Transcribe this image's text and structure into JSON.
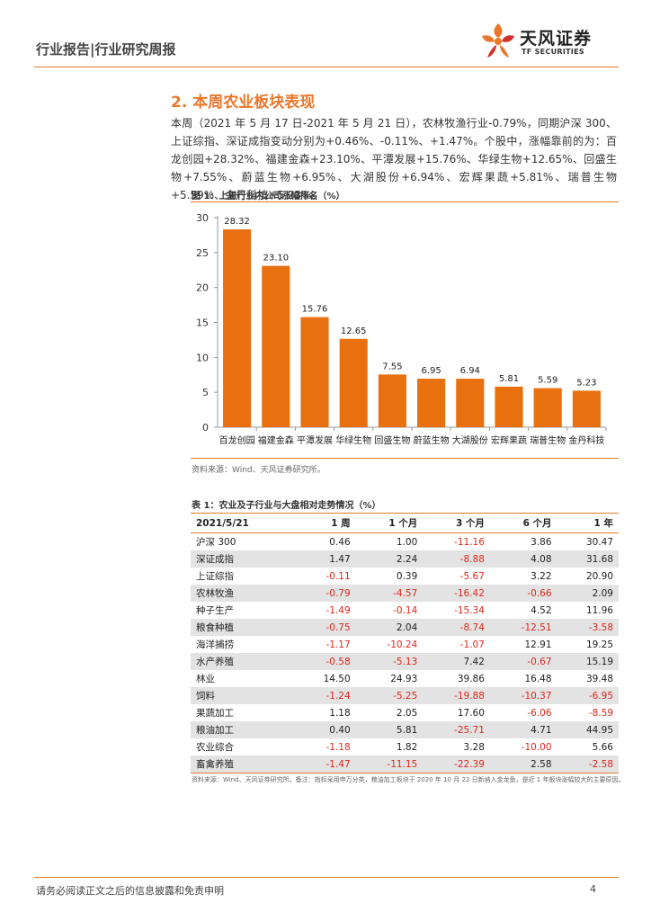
{
  "header": {
    "report_type": "行业报告|行业研究周报",
    "logo_cn": "天风证券",
    "logo_en": "TF SECURITIES",
    "brand_color": "#e8772c"
  },
  "section": {
    "title": "2. 本周农业板块表现",
    "paragraph": "本周（2021 年 5 月 17 日-2021 年 5 月 21 日），农林牧渔行业-0.79%，同期沪深 300、上证综指、深证成指变动分别为+0.46%、-0.11%、+1.47%。个股中，涨幅靠前的为：百龙创园+28.32%、福建金森+23.10%、平潭发展+15.76%、华绿生物+12.65%、回盛生物+7.55%、蔚蓝生物+6.95%、大湖股份+6.94%、宏辉果蔬+5.81%、瑞普生物+5.59%、金丹科技+5.23%。"
  },
  "figure": {
    "title": "图 1：上周行业内公司涨幅排名（%）",
    "source": "资料来源：Wind、天风证券研究所。"
  },
  "chart_data": {
    "type": "bar",
    "categories": [
      "百龙创园",
      "福建金森",
      "平潭发展",
      "华绿生物",
      "回盛生物",
      "蔚蓝生物",
      "大湖股份",
      "宏辉果蔬",
      "瑞普生物",
      "金丹科技"
    ],
    "values": [
      28.32,
      23.1,
      15.76,
      12.65,
      7.55,
      6.95,
      6.94,
      5.81,
      5.59,
      5.23
    ],
    "value_labels": [
      "28.32",
      "23.10",
      "15.76",
      "12.65",
      "7.55",
      "6.95",
      "6.94",
      "5.81",
      "5.59",
      "5.23"
    ],
    "yticks": [
      0,
      5,
      10,
      15,
      20,
      25,
      30
    ],
    "ylim": [
      0,
      30
    ],
    "grid": false,
    "bar_color": "#e8700f"
  },
  "table": {
    "title": "表 1：农业及子行业与大盘相对走势情况（%）",
    "headers": [
      "2021/5/21",
      "1 周",
      "1 个月",
      "3 个月",
      "6 个月",
      "1 年"
    ],
    "rows": [
      [
        "沪深 300",
        "0.46",
        "1.00",
        "-11.16",
        "3.86",
        "30.47"
      ],
      [
        "深证成指",
        "1.47",
        "2.24",
        "-8.88",
        "4.08",
        "31.68"
      ],
      [
        "上证综指",
        "-0.11",
        "0.39",
        "-5.67",
        "3.22",
        "20.90"
      ],
      [
        "农林牧渔",
        "-0.79",
        "-4.57",
        "-16.42",
        "-0.66",
        "2.09"
      ],
      [
        "种子生产",
        "-1.49",
        "-0.14",
        "-15.34",
        "4.52",
        "11.96"
      ],
      [
        "粮食种植",
        "-0.75",
        "2.04",
        "-8.74",
        "-12.51",
        "-3.58"
      ],
      [
        "海洋捕捞",
        "-1.17",
        "-10.24",
        "-1.07",
        "12.91",
        "19.25"
      ],
      [
        "水产养殖",
        "-0.58",
        "-5.13",
        "7.42",
        "-0.67",
        "15.19"
      ],
      [
        "林业",
        "14.50",
        "24.93",
        "39.86",
        "16.48",
        "39.48"
      ],
      [
        "饲料",
        "-1.24",
        "-5.25",
        "-19.88",
        "-10.37",
        "-6.95"
      ],
      [
        "果蔬加工",
        "1.18",
        "2.05",
        "17.60",
        "-6.06",
        "-8.59"
      ],
      [
        "粮油加工",
        "0.40",
        "5.81",
        "-25.71",
        "4.71",
        "44.95"
      ],
      [
        "农业综合",
        "-1.18",
        "1.82",
        "3.28",
        "-10.00",
        "5.66"
      ],
      [
        "畜禽养殖",
        "-1.47",
        "-11.15",
        "-22.39",
        "2.58",
        "-2.58"
      ]
    ],
    "negative_color": "#e0271c",
    "source": "资料来源：Wind、天风证券研究所。备注：指标采用申万分类，粮油加工板块于 2020 年 10 月 22 日新纳入金龙鱼，是近 1 年板块涨幅较大的主要原因。"
  },
  "footer": {
    "disclaimer": "请务必阅读正文之后的信息披露和免责申明",
    "page_number": "4"
  }
}
